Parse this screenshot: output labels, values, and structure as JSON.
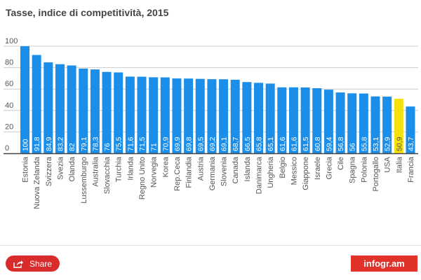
{
  "chart_data": {
    "type": "bar",
    "title": "Tasse, indice di competitività, 2015",
    "categories": [
      "Estonia",
      "Nuova Zelanda",
      "Svizzera",
      "Svezia",
      "Olanda",
      "Lussemburgo",
      "Australia",
      "Slovacchia",
      "Turchia",
      "Irlanda",
      "Regno Unito",
      "Norvegia",
      "Korea",
      "Rep.Ceca",
      "Finlandia",
      "Austria",
      "Germania",
      "Slovenia",
      "Canada",
      "Islanda",
      "Danimarca",
      "Ungheria",
      "Belgio",
      "Messico",
      "Giappone",
      "Israele",
      "Grecia",
      "Cile",
      "Spagna",
      "Polonia",
      "Portogallo",
      "USA",
      "Italia",
      "Francia"
    ],
    "values": [
      100,
      91.8,
      84.9,
      83.2,
      82,
      79.1,
      78.3,
      76,
      75.5,
      71.6,
      71.5,
      71,
      70.9,
      69.9,
      69.8,
      69.5,
      69.2,
      69.1,
      68.7,
      66.5,
      65.8,
      65.1,
      61.6,
      61.6,
      61.5,
      60.8,
      59.4,
      56.8,
      56,
      55.8,
      53.1,
      52.9,
      50.9,
      43.7
    ],
    "data_labels": [
      "100",
      "91,8",
      "84,9",
      "83,2",
      "82",
      "79,1",
      "78,3",
      "76",
      "75,5",
      "71,6",
      "71,5",
      "71",
      "70,9",
      "69,9",
      "69,8",
      "69,5",
      "69,2",
      "69,1",
      "68,7",
      "66,5",
      "65,8",
      "65,1",
      "61,6",
      "61,6",
      "61,5",
      "60,8",
      "59,4",
      "56,8",
      "56",
      "55,8",
      "53,1",
      "52,9",
      "50,9",
      "43,7"
    ],
    "yticks": [
      "0",
      "20",
      "40",
      "60",
      "80",
      "100"
    ],
    "ylim": [
      0,
      100
    ],
    "grid": true,
    "colors": {
      "default": "#1a8ee8",
      "highlight": "#f5e10a",
      "highlight_category": "Italia"
    }
  },
  "share_label": "Share",
  "logo_text": "infogr.am"
}
